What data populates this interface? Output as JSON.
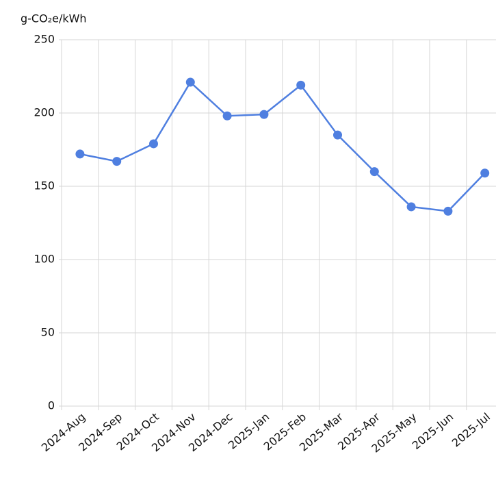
{
  "chart_data": {
    "type": "line",
    "y_label": "g-CO₂e/kWh",
    "categories": [
      "2024-Aug",
      "2024-Sep",
      "2024-Oct",
      "2024-Nov",
      "2024-Dec",
      "2025-Jan",
      "2025-Feb",
      "2025-Mar",
      "2025-Apr",
      "2025-May",
      "2025-Jun",
      "2025-Jul"
    ],
    "values": [
      172,
      167,
      179,
      221,
      198,
      199,
      219,
      185,
      160,
      136,
      133,
      159
    ],
    "color": "#4f7fe0",
    "ylim": [
      0,
      250
    ],
    "yticks": [
      0,
      50,
      100,
      150,
      200,
      250
    ],
    "grid": true
  }
}
